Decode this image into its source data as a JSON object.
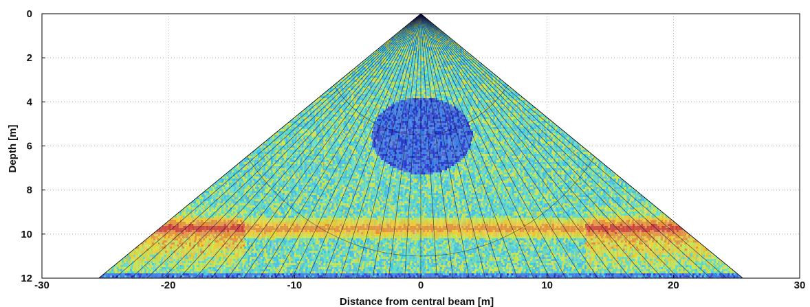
{
  "chart_data": {
    "type": "heatmap",
    "title": "",
    "xlabel": "Distance from central beam [m]",
    "ylabel": "Depth [m]",
    "xlim": [
      -30,
      30
    ],
    "ylim": [
      12,
      0
    ],
    "y_axis_inverted": true,
    "x_ticks": [
      "-30",
      "-20",
      "-10",
      "0",
      "10",
      "20",
      "30"
    ],
    "y_ticks": [
      "0",
      "2",
      "4",
      "6",
      "8",
      "10",
      "12"
    ],
    "grid": "dotted",
    "apex": {
      "x": 0,
      "depth": 0
    },
    "swath_edges": {
      "left_x_at_12m": -25.5,
      "right_x_at_12m": 25.5
    },
    "low_intensity_zone": {
      "center_x": 0,
      "center_depth": 5.5,
      "radius_m": 4
    },
    "high_intensity_layer": {
      "depth": 9.7,
      "thickness_m": 0.5,
      "strongest_x_ranges": [
        [
          -26,
          -14
        ],
        [
          13,
          26
        ]
      ]
    },
    "beam_count": 41,
    "range_rings_m": [
      5.5,
      11
    ],
    "colormap": [
      "#0a1fd6",
      "#1e6ef0",
      "#27c6f0",
      "#4fe6c3",
      "#c8f03c",
      "#f7d21a",
      "#f08a1c",
      "#d9281a"
    ],
    "colors": {
      "background": "#ffffff",
      "axis": "#111111",
      "grid": "#9a9a9a"
    }
  }
}
